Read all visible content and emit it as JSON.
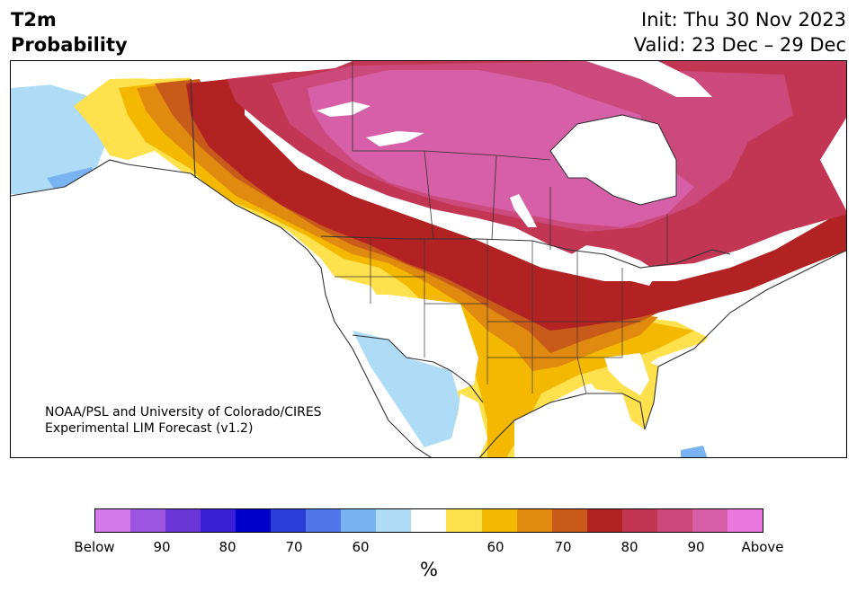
{
  "header": {
    "variable": "T2m",
    "product": "Probability",
    "init": "Init: Thu 30 Nov 2023",
    "valid": "Valid: 23 Dec – 29 Dec"
  },
  "credit": {
    "line1": "NOAA/PSL and University of Colorado/CIRES",
    "line2": "Experimental LIM Forecast (v1.2)"
  },
  "colorbar": {
    "unit": "%",
    "labels": [
      "Below",
      "90",
      "80",
      "70",
      "60",
      "60",
      "70",
      "80",
      "90",
      "Above"
    ],
    "colors": [
      "#d57aeb",
      "#9b55e0",
      "#6c35d8",
      "#3a1fd6",
      "#0000cc",
      "#2a3fd8",
      "#5077ea",
      "#7ab3f2",
      "#aedcf7",
      "#ffffff",
      "#ffe04d",
      "#f4b800",
      "#e08a10",
      "#c85a1a",
      "#b22222",
      "#c23553",
      "#cc4a7b",
      "#d65fa8",
      "#e878dd"
    ]
  },
  "map": {
    "region": "North America",
    "colors": {
      "land_white": "#ffffff",
      "below_60": "#aedcf7",
      "below_70": "#7ab3f2",
      "above_60": "#ffe04d",
      "above_65": "#f4b800",
      "above_70": "#e08a10",
      "above_75": "#c85a1a",
      "above_80": "#b22222",
      "above_85": "#c23553",
      "above_90": "#cc4a7b",
      "above_95": "#d65fa8",
      "coast": "#333333"
    }
  }
}
